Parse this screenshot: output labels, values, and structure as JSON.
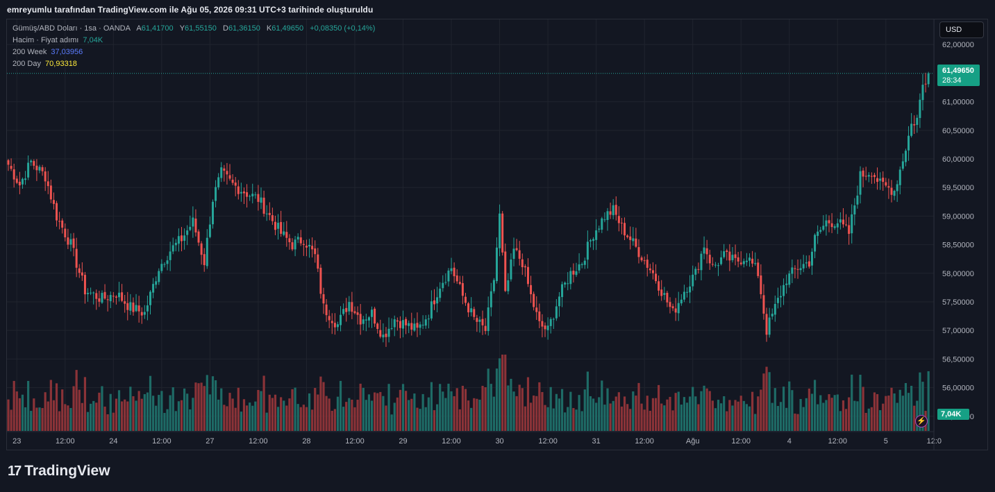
{
  "header": {
    "caption": "emreyumlu tarafından TradingView.com ile Ağu 05, 2026 09:31 UTC+3 tarihinde oluşturuldu"
  },
  "legend": {
    "symbol": "Gümüş/ABD Doları · 1sa · OANDA",
    "open_label": "A",
    "open": "61,41700",
    "high_label": "Y",
    "high": "61,55150",
    "low_label": "D",
    "low": "61,36150",
    "close_label": "K",
    "close": "61,49650",
    "change": "+0,08350 (+0,14%)",
    "volume_label": "Hacim · Fiyat adımı",
    "volume": "7,04K",
    "ma_week_label": "200 Week",
    "ma_week": "37,03956",
    "ma_day_label": "200 Day",
    "ma_day": "70,93318"
  },
  "currency_button": "USD",
  "price_tag": {
    "price": "61,49650",
    "countdown": "28:34"
  },
  "volume_tag": "7,04K",
  "brand": "TradingView",
  "colors": {
    "up": "#26a69a",
    "down": "#ef5350",
    "vol_up": "#1e6b66",
    "vol_down": "#8b3338",
    "background": "#131722",
    "grid": "#20242e",
    "ma_week": "#2962ff",
    "ma_day": "#ffeb3b"
  },
  "chart_data": {
    "type": "candlestick",
    "symbol": "Gümüş/ABD Doları",
    "interval": "1sa",
    "y_ticks": [
      "62,00000",
      "61,00000",
      "60,50000",
      "60,00000",
      "59,50000",
      "59,00000",
      "58,50000",
      "58,00000",
      "57,50000",
      "57,00000",
      "56,50000",
      "56,00000",
      "55,50000"
    ],
    "y_tick_values": [
      62.0,
      61.0,
      60.5,
      60.0,
      59.5,
      59.0,
      58.5,
      58.0,
      57.5,
      57.0,
      56.5,
      56.0,
      55.5
    ],
    "ylim": [
      55.4,
      62.1
    ],
    "x_ticks": [
      "23",
      "12:00",
      "24",
      "12:00",
      "27",
      "12:00",
      "28",
      "12:00",
      "29",
      "12:00",
      "30",
      "12:00",
      "31",
      "12:00",
      "Ağu",
      "12:00",
      "4",
      "12:00",
      "5",
      "12:0"
    ],
    "x_tick_bar_index": [
      3,
      20,
      37,
      54,
      71,
      88,
      105,
      122,
      139,
      156,
      173,
      190,
      207,
      224,
      241,
      258,
      275,
      292,
      309,
      326
    ],
    "close_anchors": [
      [
        0,
        59.9
      ],
      [
        4,
        59.55
      ],
      [
        8,
        59.95
      ],
      [
        13,
        59.7
      ],
      [
        17,
        59.0
      ],
      [
        22,
        58.5
      ],
      [
        27,
        57.7
      ],
      [
        33,
        57.55
      ],
      [
        38,
        57.65
      ],
      [
        43,
        57.4
      ],
      [
        48,
        57.3
      ],
      [
        53,
        58.1
      ],
      [
        57,
        58.4
      ],
      [
        61,
        58.6
      ],
      [
        65,
        58.9
      ],
      [
        69,
        58.2
      ],
      [
        72,
        59.3
      ],
      [
        75,
        59.75
      ],
      [
        79,
        59.55
      ],
      [
        84,
        59.4
      ],
      [
        88,
        59.3
      ],
      [
        92,
        59.0
      ],
      [
        96,
        58.7
      ],
      [
        100,
        58.5
      ],
      [
        104,
        58.6
      ],
      [
        108,
        58.3
      ],
      [
        111,
        57.4
      ],
      [
        116,
        57.1
      ],
      [
        120,
        57.5
      ],
      [
        124,
        57.2
      ],
      [
        128,
        57.3
      ],
      [
        132,
        56.9
      ],
      [
        136,
        57.2
      ],
      [
        140,
        57.1
      ],
      [
        144,
        57.0
      ],
      [
        148,
        57.3
      ],
      [
        152,
        57.8
      ],
      [
        156,
        58.1
      ],
      [
        160,
        57.6
      ],
      [
        164,
        57.2
      ],
      [
        168,
        57.0
      ],
      [
        171,
        57.9
      ],
      [
        173,
        59.0
      ],
      [
        175,
        57.6
      ],
      [
        178,
        58.4
      ],
      [
        181,
        58.2
      ],
      [
        184,
        57.6
      ],
      [
        187,
        57.1
      ],
      [
        190,
        57.0
      ],
      [
        194,
        57.6
      ],
      [
        198,
        58.0
      ],
      [
        202,
        58.2
      ],
      [
        206,
        58.7
      ],
      [
        210,
        59.0
      ],
      [
        213,
        59.1
      ],
      [
        216,
        58.8
      ],
      [
        219,
        58.6
      ],
      [
        223,
        58.3
      ],
      [
        227,
        58.0
      ],
      [
        231,
        57.6
      ],
      [
        234,
        57.3
      ],
      [
        238,
        57.7
      ],
      [
        242,
        58.0
      ],
      [
        245,
        58.5
      ],
      [
        248,
        58.1
      ],
      [
        252,
        58.3
      ],
      [
        256,
        58.2
      ],
      [
        260,
        58.3
      ],
      [
        264,
        58.0
      ],
      [
        267,
        57.0
      ],
      [
        270,
        57.4
      ],
      [
        274,
        57.9
      ],
      [
        278,
        58.1
      ],
      [
        282,
        58.2
      ],
      [
        284,
        58.6
      ],
      [
        288,
        58.9
      ],
      [
        292,
        58.9
      ],
      [
        296,
        58.7
      ],
      [
        300,
        59.7
      ],
      [
        304,
        59.8
      ],
      [
        307,
        59.55
      ],
      [
        312,
        59.45
      ],
      [
        315,
        60.0
      ],
      [
        318,
        60.6
      ],
      [
        320,
        60.7
      ],
      [
        322,
        61.3
      ],
      [
        324,
        61.4965
      ]
    ],
    "volume_ylim": [
      0,
      9000
    ],
    "volume_last": 7040
  }
}
